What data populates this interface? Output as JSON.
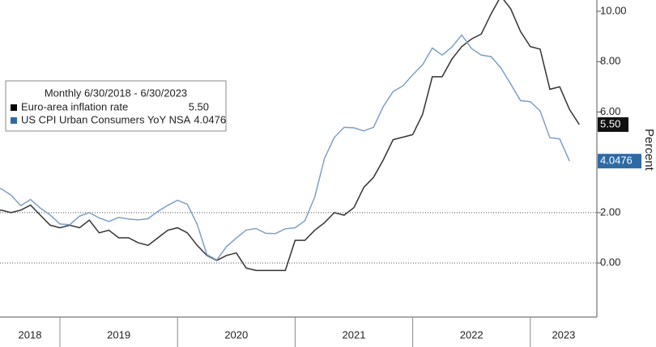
{
  "chart_data": {
    "type": "line",
    "legend_title": "Monthly 6/30/2018 - 6/30/2023",
    "y_axis_label": "Percent",
    "x_labels": [
      "2018",
      "2019",
      "2020",
      "2021",
      "2022",
      "2023"
    ],
    "ylim": [
      -2.15,
      10.45
    ],
    "yticks": [
      {
        "value": 0,
        "label": "0.00"
      },
      {
        "value": 2,
        "label": "2.00"
      },
      {
        "value": 6,
        "label": "6.00"
      },
      {
        "value": 8,
        "label": "8.00"
      },
      {
        "value": 10,
        "label": "10.00"
      }
    ],
    "reference_lines": [
      2,
      0
    ],
    "series": [
      {
        "name": "Euro-area inflation rate",
        "color": "#333333",
        "last_label": "5.50",
        "values": [
          2.0,
          2.1,
          2.0,
          2.1,
          2.3,
          1.9,
          1.5,
          1.4,
          1.5,
          1.4,
          1.7,
          1.2,
          1.3,
          1.0,
          1.0,
          0.8,
          0.7,
          1.0,
          1.3,
          1.4,
          1.2,
          0.7,
          0.3,
          0.1,
          0.3,
          0.4,
          -0.2,
          -0.3,
          -0.3,
          -0.3,
          -0.3,
          0.9,
          0.9,
          1.3,
          1.6,
          2.0,
          1.9,
          2.2,
          3.0,
          3.4,
          4.1,
          4.9,
          5.0,
          5.1,
          5.9,
          7.4,
          7.4,
          8.1,
          8.6,
          8.9,
          9.1,
          9.9,
          10.6,
          10.1,
          9.2,
          8.6,
          8.5,
          6.9,
          7.0,
          6.1,
          5.5
        ]
      },
      {
        "name": "US CPI Urban Consumers YoY NSA",
        "color": "#7f9fc4",
        "label_color": "#2f6aa3",
        "last_label": "4.0476",
        "values": [
          2.87,
          2.95,
          2.7,
          2.28,
          2.52,
          2.18,
          1.91,
          1.55,
          1.52,
          1.86,
          2.0,
          1.79,
          1.65,
          1.81,
          1.75,
          1.71,
          1.76,
          2.05,
          2.29,
          2.49,
          2.33,
          1.54,
          0.33,
          0.12,
          0.65,
          0.99,
          1.31,
          1.37,
          1.18,
          1.17,
          1.36,
          1.4,
          1.68,
          2.62,
          4.16,
          4.99,
          5.39,
          5.37,
          5.25,
          5.39,
          6.22,
          6.81,
          7.04,
          7.48,
          7.87,
          8.54,
          8.26,
          8.58,
          9.06,
          8.52,
          8.26,
          8.2,
          7.75,
          7.11,
          6.45,
          6.41,
          6.04,
          4.98,
          4.93,
          4.0476,
          null
        ]
      }
    ]
  }
}
